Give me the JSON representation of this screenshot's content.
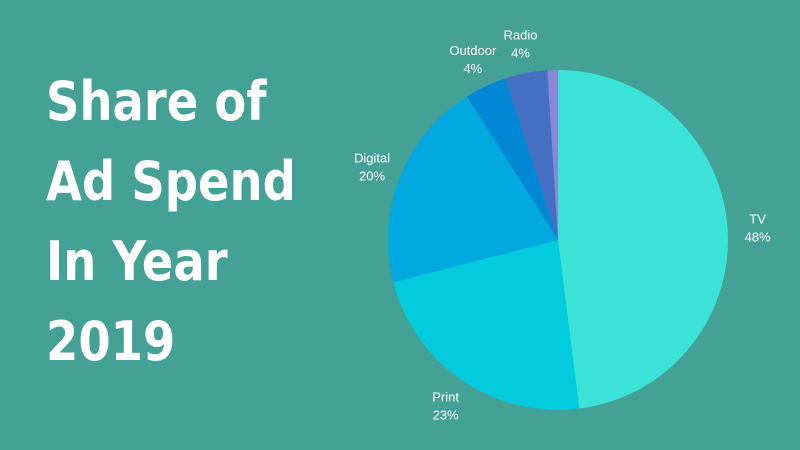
{
  "title_lines": [
    "Share of",
    "Ad Spend",
    "In Year",
    "2019"
  ],
  "colors": {
    "background": "#43a195",
    "text": "#ffffff"
  },
  "chart_data": {
    "type": "pie",
    "title": "Share of Ad Spend In Year 2019",
    "start_angle_deg": 0,
    "direction": "clockwise",
    "slices": [
      {
        "label": "TV",
        "value": 48,
        "value_label": "48%",
        "color": "#3be3d6"
      },
      {
        "label": "Print",
        "value": 23,
        "value_label": "23%",
        "color": "#02cbdd"
      },
      {
        "label": "Digital",
        "value": 20,
        "value_label": "20%",
        "color": "#02a8e0"
      },
      {
        "label": "Outdoor",
        "value": 4,
        "value_label": "4%",
        "color": "#0288d4"
      },
      {
        "label": "Radio",
        "value": 4,
        "value_label": "4%",
        "color": "#446fc2"
      },
      {
        "label": "",
        "value": 1,
        "value_label": "",
        "color": "#8a86d8"
      }
    ]
  }
}
